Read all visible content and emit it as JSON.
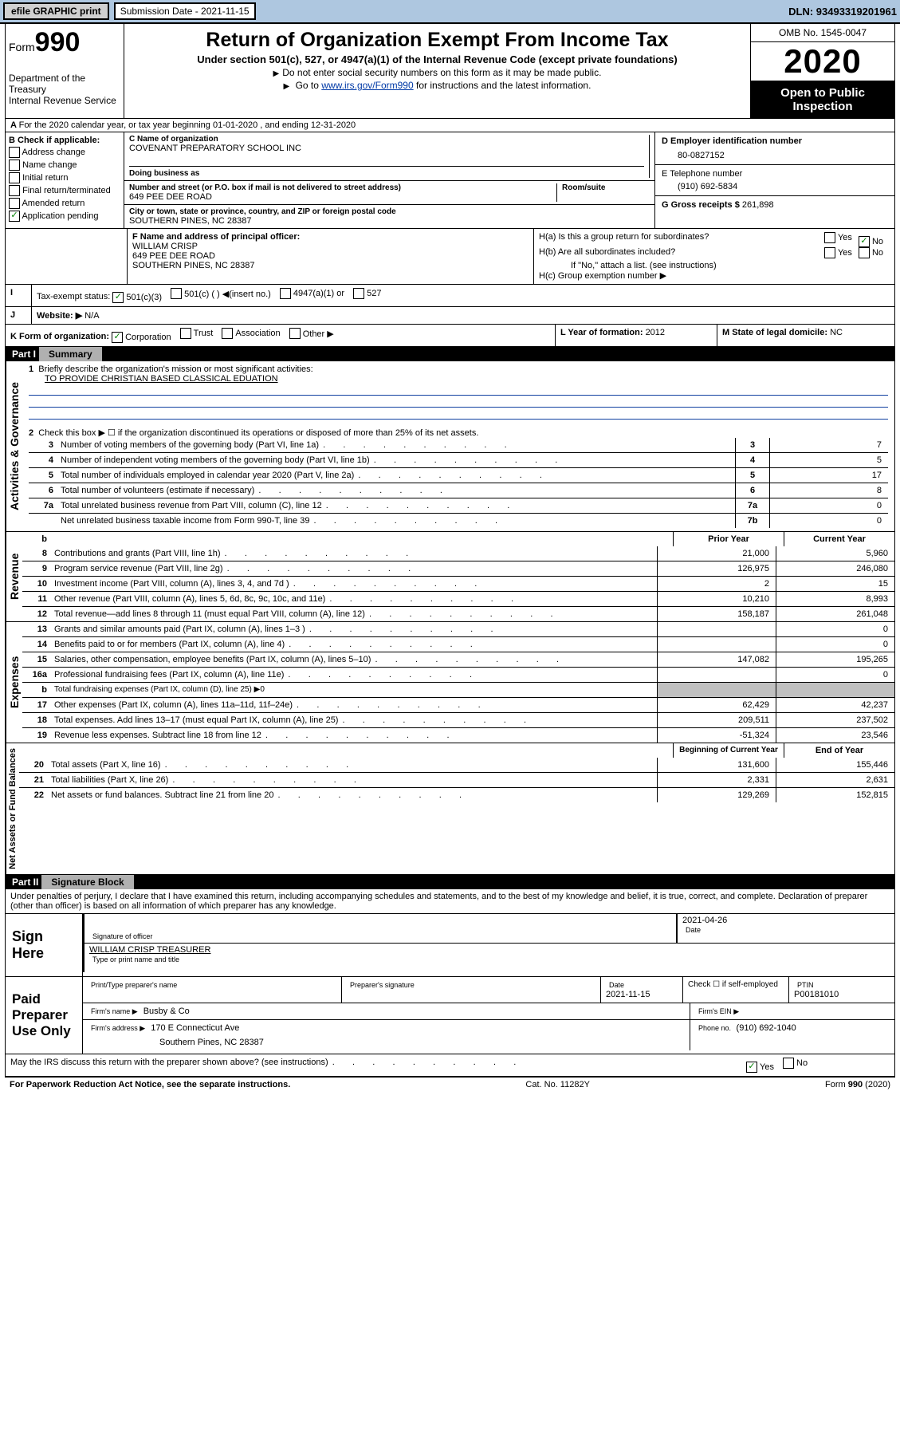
{
  "toolbar": {
    "efile": "efile GRAPHIC print",
    "submission_label": "Submission Date - 2021-11-15",
    "dln": "DLN: 93493319201961"
  },
  "header": {
    "form_prefix": "Form",
    "form_num": "990",
    "dept": "Department of the Treasury\nInternal Revenue Service",
    "title": "Return of Organization Exempt From Income Tax",
    "sub": "Under section 501(c), 527, or 4947(a)(1) of the Internal Revenue Code (except private foundations)",
    "note1": "Do not enter social security numbers on this form as it may be made public.",
    "note2_pre": "Go to ",
    "note2_link": "www.irs.gov/Form990",
    "note2_post": " for instructions and the latest information.",
    "omb": "OMB No. 1545-0047",
    "year": "2020",
    "public": "Open to Public Inspection"
  },
  "lineA": "For the 2020 calendar year, or tax year beginning 01-01-2020    , and ending 12-31-2020",
  "b": {
    "hdr": "B Check if applicable:",
    "opts": [
      "Address change",
      "Name change",
      "Initial return",
      "Final return/terminated",
      "Amended return",
      "Application pending"
    ]
  },
  "c": {
    "name_lbl": "C Name of organization",
    "name": "COVENANT PREPARATORY SCHOOL INC",
    "dba_lbl": "Doing business as",
    "dba": "",
    "street_lbl": "Number and street (or P.O. box if mail is not delivered to street address)",
    "room_lbl": "Room/suite",
    "street": "649 PEE DEE ROAD",
    "city_lbl": "City or town, state or province, country, and ZIP or foreign postal code",
    "city": "SOUTHERN PINES, NC  28387"
  },
  "d": {
    "lbl": "D Employer identification number",
    "val": "80-0827152"
  },
  "e": {
    "lbl": "E Telephone number",
    "val": "(910) 692-5834"
  },
  "g": {
    "lbl": "G Gross receipts $ ",
    "val": "261,898"
  },
  "f": {
    "lbl": "F  Name and address of principal officer:",
    "name": "WILLIAM CRISP",
    "street": "649 PEE DEE ROAD",
    "city": "SOUTHERN PINES, NC  28387"
  },
  "h": {
    "a": "H(a)  Is this a group return for subordinates?",
    "b": "H(b)  Are all subordinates included?",
    "note": "If \"No,\" attach a list. (see instructions)",
    "c": "H(c)  Group exemption number ▶"
  },
  "i": {
    "lbl": "Tax-exempt status:",
    "opts": [
      "501(c)(3)",
      "501(c) (  ) ◀(insert no.)",
      "4947(a)(1) or",
      "527"
    ]
  },
  "j": {
    "lbl": "Website: ▶",
    "val": "N/A"
  },
  "k": {
    "lbl": "K Form of organization:",
    "opts": [
      "Corporation",
      "Trust",
      "Association",
      "Other ▶"
    ]
  },
  "l": {
    "lbl": "L Year of formation: ",
    "val": "2012"
  },
  "m": {
    "lbl": "M State of legal domicile: ",
    "val": "NC"
  },
  "part1": {
    "hdr": "Part I",
    "title": "Summary",
    "q1": "Briefly describe the organization's mission or most significant activities:",
    "a1": "TO PROVIDE CHRISTIAN BASED CLASSICAL EDUATION",
    "q2": "Check this box ▶ ☐ if the organization discontinued its operations or disposed of more than 25% of its net assets.",
    "rows_act": [
      {
        "n": "3",
        "lbl": "Number of voting members of the governing body (Part VI, line 1a)",
        "c": "3",
        "v": "7"
      },
      {
        "n": "4",
        "lbl": "Number of independent voting members of the governing body (Part VI, line 1b)",
        "c": "4",
        "v": "5"
      },
      {
        "n": "5",
        "lbl": "Total number of individuals employed in calendar year 2020 (Part V, line 2a)",
        "c": "5",
        "v": "17"
      },
      {
        "n": "6",
        "lbl": "Total number of volunteers (estimate if necessary)",
        "c": "6",
        "v": "8"
      },
      {
        "n": "7a",
        "lbl": "Total unrelated business revenue from Part VIII, column (C), line 12",
        "c": "7a",
        "v": "0"
      },
      {
        "n": "",
        "lbl": "Net unrelated business taxable income from Form 990-T, line 39",
        "c": "7b",
        "v": "0"
      }
    ],
    "col_prior": "Prior Year",
    "col_curr": "Current Year",
    "rows_rev": [
      {
        "n": "8",
        "lbl": "Contributions and grants (Part VIII, line 1h)",
        "p": "21,000",
        "c": "5,960"
      },
      {
        "n": "9",
        "lbl": "Program service revenue (Part VIII, line 2g)",
        "p": "126,975",
        "c": "246,080"
      },
      {
        "n": "10",
        "lbl": "Investment income (Part VIII, column (A), lines 3, 4, and 7d )",
        "p": "2",
        "c": "15"
      },
      {
        "n": "11",
        "lbl": "Other revenue (Part VIII, column (A), lines 5, 6d, 8c, 9c, 10c, and 11e)",
        "p": "10,210",
        "c": "8,993"
      },
      {
        "n": "12",
        "lbl": "Total revenue—add lines 8 through 11 (must equal Part VIII, column (A), line 12)",
        "p": "158,187",
        "c": "261,048"
      }
    ],
    "rows_exp": [
      {
        "n": "13",
        "lbl": "Grants and similar amounts paid (Part IX, column (A), lines 1–3 )",
        "p": "",
        "c": "0"
      },
      {
        "n": "14",
        "lbl": "Benefits paid to or for members (Part IX, column (A), line 4)",
        "p": "",
        "c": "0"
      },
      {
        "n": "15",
        "lbl": "Salaries, other compensation, employee benefits (Part IX, column (A), lines 5–10)",
        "p": "147,082",
        "c": "195,265"
      },
      {
        "n": "16a",
        "lbl": "Professional fundraising fees (Part IX, column (A), line 11e)",
        "p": "",
        "c": "0"
      },
      {
        "n": "b",
        "lbl": "Total fundraising expenses (Part IX, column (D), line 25) ▶0",
        "p": "SHADE",
        "c": "SHADE"
      },
      {
        "n": "17",
        "lbl": "Other expenses (Part IX, column (A), lines 11a–11d, 11f–24e)",
        "p": "62,429",
        "c": "42,237"
      },
      {
        "n": "18",
        "lbl": "Total expenses. Add lines 13–17 (must equal Part IX, column (A), line 25)",
        "p": "209,511",
        "c": "237,502"
      },
      {
        "n": "19",
        "lbl": "Revenue less expenses. Subtract line 18 from line 12",
        "p": "-51,324",
        "c": "23,546"
      }
    ],
    "col_boy": "Beginning of Current Year",
    "col_eoy": "End of Year",
    "rows_net": [
      {
        "n": "20",
        "lbl": "Total assets (Part X, line 16)",
        "p": "131,600",
        "c": "155,446"
      },
      {
        "n": "21",
        "lbl": "Total liabilities (Part X, line 26)",
        "p": "2,331",
        "c": "2,631"
      },
      {
        "n": "22",
        "lbl": "Net assets or fund balances. Subtract line 21 from line 20",
        "p": "129,269",
        "c": "152,815"
      }
    ],
    "tabs": {
      "act": "Activities & Governance",
      "rev": "Revenue",
      "exp": "Expenses",
      "net": "Net Assets or Fund Balances"
    }
  },
  "part2": {
    "hdr": "Part II",
    "title": "Signature Block",
    "decl": "Under penalties of perjury, I declare that I have examined this return, including accompanying schedules and statements, and to the best of my knowledge and belief, it is true, correct, and complete. Declaration of preparer (other than officer) is based on all information of which preparer has any knowledge."
  },
  "sign": {
    "here": "Sign Here",
    "sig_lbl": "Signature of officer",
    "date_lbl": "Date",
    "date_val": "2021-04-26",
    "name": "WILLIAM CRISP  TREASURER",
    "name_lbl": "Type or print name and title"
  },
  "prep": {
    "here": "Paid Preparer Use Only",
    "c1": "Print/Type preparer's name",
    "c2": "Preparer's signature",
    "c3_lbl": "Date",
    "c3": "2021-11-15",
    "c4": "Check ☐ if self-employed",
    "c5_lbl": "PTIN",
    "c5": "P00181010",
    "firm_lbl": "Firm's name   ▶",
    "firm": "Busby & Co",
    "ein_lbl": "Firm's EIN ▶",
    "addr_lbl": "Firm's address ▶",
    "addr1": "170 E Connecticut Ave",
    "addr2": "Southern Pines, NC  28387",
    "phone_lbl": "Phone no. ",
    "phone": "(910) 692-1040"
  },
  "irs_discuss": "May the IRS discuss this return with the preparer shown above? (see instructions)",
  "footer": {
    "pra": "For Paperwork Reduction Act Notice, see the separate instructions.",
    "cat": "Cat. No. 11282Y",
    "form": "Form 990 (2020)"
  },
  "colors": {
    "toolbar_bg": "#aec7e0",
    "link": "#0039a6",
    "check_green": "#008000"
  }
}
